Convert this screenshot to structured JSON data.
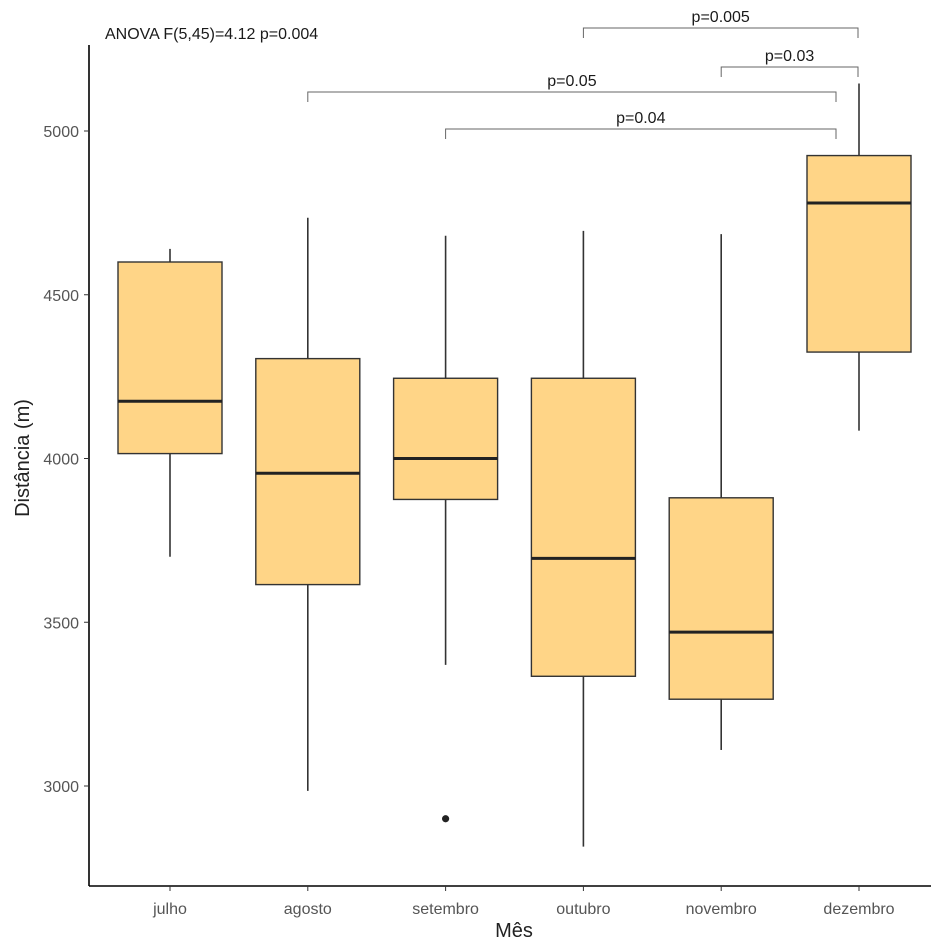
{
  "chart_data": {
    "type": "box",
    "xlabel": "Mês",
    "ylabel": "Distância (m)",
    "yticks": [
      3000,
      3500,
      4000,
      4500,
      5000
    ],
    "ylim": [
      2720,
      5290
    ],
    "annotation": "ANOVA  F(5,45)=4.12 p=0.004",
    "categories": [
      "julho",
      "agosto",
      "setembro",
      "outubro",
      "novembro",
      "dezembro"
    ],
    "boxes": [
      {
        "category": "julho",
        "whisker_low": 3700,
        "q1": 4015,
        "median": 4175,
        "q3": 4600,
        "whisker_high": 4640,
        "outliers": []
      },
      {
        "category": "agosto",
        "whisker_low": 2985,
        "q1": 3615,
        "median": 3955,
        "q3": 4305,
        "whisker_high": 4735,
        "outliers": []
      },
      {
        "category": "setembro",
        "whisker_low": 3370,
        "q1": 3875,
        "median": 4000,
        "q3": 4245,
        "whisker_high": 4680,
        "outliers": [
          2900
        ]
      },
      {
        "category": "outubro",
        "whisker_low": 2815,
        "q1": 3335,
        "median": 3695,
        "q3": 4245,
        "whisker_high": 4695,
        "outliers": []
      },
      {
        "category": "novembro",
        "whisker_low": 3110,
        "q1": 3265,
        "median": 3470,
        "q3": 3880,
        "whisker_high": 4685,
        "outliers": []
      },
      {
        "category": "dezembro",
        "whisker_low": 4085,
        "q1": 4325,
        "median": 4780,
        "q3": 4925,
        "whisker_high": 5145,
        "outliers": []
      }
    ],
    "comparisons": [
      {
        "from": "outubro",
        "to": "dezembro",
        "label": "p=0.005"
      },
      {
        "from": "novembro",
        "to": "dezembro",
        "label": "p=0.03"
      },
      {
        "from": "agosto",
        "to": "dezembro",
        "label": "p=0.05"
      },
      {
        "from": "setembro",
        "to": "dezembro",
        "label": "p=0.04"
      }
    ],
    "grid": false,
    "legend": "none",
    "colors": {
      "box_fill": "#FFD587",
      "box_stroke": "#333333",
      "bracket": "#666666"
    }
  }
}
